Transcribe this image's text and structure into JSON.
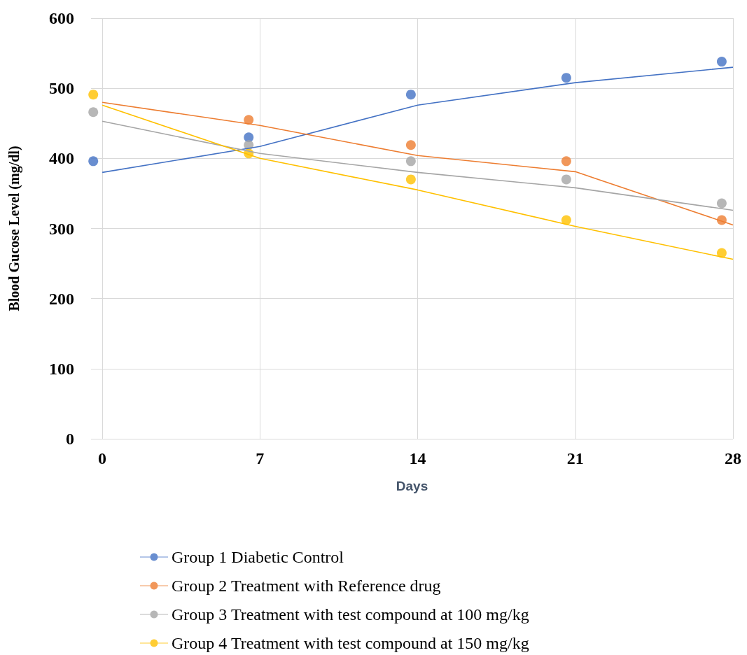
{
  "chart_data": {
    "type": "scatter",
    "xlabel": "Days",
    "ylabel": "Blood Gucose Level (mg/dl)",
    "xlim": [
      -0.5,
      28
    ],
    "xticks": [
      0,
      7,
      14,
      21,
      28
    ],
    "ylim": [
      0,
      600
    ],
    "yticks": [
      0,
      100,
      200,
      300,
      400,
      500,
      600
    ],
    "grid": true,
    "legend": "bottom",
    "marker": "circle",
    "line_style": "solid",
    "series": [
      {
        "name": "Group 1 Diabetic Control",
        "color": "#4472c4",
        "x": [
          -0.4,
          6.5,
          13.7,
          20.6,
          27.5
        ],
        "values": [
          396,
          430,
          491,
          515,
          538
        ]
      },
      {
        "name": "Group 2 Treatment with Reference drug",
        "color": "#ed7d31",
        "x": [
          6.5,
          13.7,
          20.6,
          27.5
        ],
        "values": [
          455,
          419,
          396,
          312
        ]
      },
      {
        "name": "Group 3 Treatment with test compound at 100 mg/kg",
        "color": "#a5a5a5",
        "x": [
          -0.4,
          6.5,
          13.7,
          20.6,
          27.5
        ],
        "values": [
          466,
          419,
          396,
          370,
          336
        ]
      },
      {
        "name": "Group 4 Treatment with test compound at 150 mg/kg",
        "color": "#ffc000",
        "x": [
          -0.4,
          6.5,
          13.7,
          20.6,
          27.5
        ],
        "values": [
          491,
          407,
          370,
          312,
          265
        ]
      },
      {
        "type": "line",
        "marker": "none",
        "color": "#4472c4",
        "x": [
          0,
          7,
          14,
          21,
          28
        ],
        "values": [
          380,
          417,
          476,
          508,
          530
        ]
      },
      {
        "type": "line",
        "marker": "none",
        "color": "#ed7d31",
        "x": [
          0,
          7,
          14,
          21,
          28
        ],
        "values": [
          480,
          447,
          404,
          381,
          305
        ]
      },
      {
        "type": "line",
        "marker": "none",
        "color": "#a5a5a5",
        "x": [
          0,
          7,
          14,
          21,
          28
        ],
        "values": [
          453,
          407,
          380,
          358,
          326
        ]
      },
      {
        "type": "line",
        "marker": "none",
        "color": "#ffc000",
        "x": [
          0,
          7,
          14,
          21,
          28
        ],
        "values": [
          476,
          400,
          355,
          303,
          256
        ]
      }
    ]
  }
}
